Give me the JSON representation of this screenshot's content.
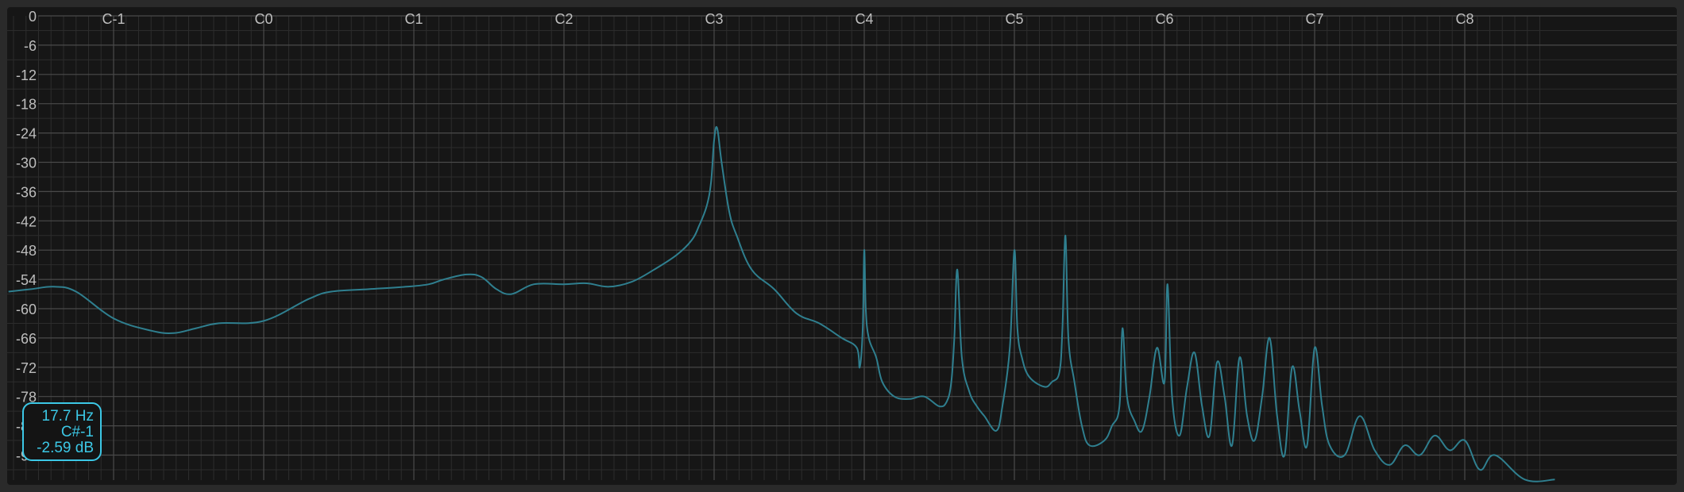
{
  "colors": {
    "background": "#161616",
    "frame": "#2a2a2a",
    "grid_major": "#4a4a4a",
    "grid_minor": "#2c2c2c",
    "label": "#bdbdbd",
    "trace": "#2f7f8f",
    "accent": "#3cc8e6"
  },
  "readout": {
    "frequency": "17.7 Hz",
    "note": "C#-1",
    "level": "-2.59 dB"
  },
  "chart_data": {
    "type": "line",
    "title": "",
    "xlabel": "",
    "ylabel": "",
    "x_scale": "log2",
    "x_unit": "semitones",
    "xlim": [
      -0.55,
      8.6
    ],
    "ylim": [
      -95,
      0
    ],
    "grid": true,
    "x_ticks": [
      {
        "label": "C-1",
        "value": -1
      },
      {
        "label": "C0",
        "value": 0
      },
      {
        "label": "C1",
        "value": 1
      },
      {
        "label": "C2",
        "value": 2
      },
      {
        "label": "C3",
        "value": 3
      },
      {
        "label": "C4",
        "value": 4
      },
      {
        "label": "C5",
        "value": 5
      },
      {
        "label": "C6",
        "value": 6
      },
      {
        "label": "C7",
        "value": 7
      },
      {
        "label": "C8",
        "value": 8
      }
    ],
    "y_ticks": [
      "0",
      "-6",
      "-12",
      "-18",
      "-24",
      "-30",
      "-36",
      "-42",
      "-48",
      "-54",
      "-60",
      "-66",
      "-72",
      "-78",
      "-84",
      "-90"
    ],
    "series": [
      {
        "x": [
          -1.7,
          -1.55,
          -1.4,
          -1.25,
          -1.0,
          -0.75,
          -0.6,
          -0.45,
          -0.3,
          0.0,
          0.3,
          0.45,
          0.7,
          0.95,
          1.1,
          1.2,
          1.35,
          1.45,
          1.55,
          1.65,
          1.8,
          2.0,
          2.15,
          2.3,
          2.45,
          2.6,
          2.75,
          2.85,
          2.9,
          2.95,
          2.98,
          3.0,
          3.02,
          3.05,
          3.1,
          3.15,
          3.25,
          3.4,
          3.55,
          3.7,
          3.85,
          3.95,
          3.97,
          3.99,
          4.0,
          4.01,
          4.03,
          4.08,
          4.12,
          4.2,
          4.3,
          4.4,
          4.5,
          4.55,
          4.58,
          4.6,
          4.62,
          4.65,
          4.7,
          4.75,
          4.8,
          4.88,
          4.92,
          4.97,
          5.0,
          5.02,
          5.05,
          5.1,
          5.2,
          5.25,
          5.3,
          5.32,
          5.34,
          5.36,
          5.4,
          5.45,
          5.5,
          5.6,
          5.65,
          5.7,
          5.72,
          5.75,
          5.8,
          5.85,
          5.9,
          5.95,
          6.0,
          6.02,
          6.05,
          6.1,
          6.15,
          6.2,
          6.25,
          6.3,
          6.35,
          6.4,
          6.45,
          6.5,
          6.55,
          6.6,
          6.65,
          6.7,
          6.75,
          6.8,
          6.85,
          6.9,
          6.95,
          7.0,
          7.05,
          7.1,
          7.2,
          7.3,
          7.4,
          7.5,
          7.6,
          7.7,
          7.8,
          7.9,
          8.0,
          8.1,
          8.2,
          8.4,
          8.6
        ],
        "y": [
          -56.5,
          -56.0,
          -55.5,
          -56.5,
          -62.0,
          -64.5,
          -65.0,
          -64.0,
          -63.0,
          -62.5,
          -58.0,
          -56.5,
          -56.0,
          -55.5,
          -55.0,
          -54.0,
          -53.0,
          -53.5,
          -56.0,
          -57.0,
          -55.0,
          -55.0,
          -54.8,
          -55.5,
          -54.5,
          -52.0,
          -49.0,
          -46.0,
          -43.0,
          -39.0,
          -34.0,
          -25.5,
          -23.0,
          -30.0,
          -40.0,
          -45.0,
          -52.0,
          -56.0,
          -61.0,
          -63.0,
          -66.0,
          -68.0,
          -72.0,
          -64.0,
          -48.0,
          -60.0,
          -66.0,
          -70.0,
          -75.0,
          -78.0,
          -78.5,
          -78.0,
          -80.0,
          -79.0,
          -75.0,
          -66.0,
          -52.0,
          -70.0,
          -77.0,
          -80.0,
          -82.0,
          -85.0,
          -80.0,
          -68.0,
          -48.0,
          -64.0,
          -70.0,
          -74.0,
          -76.0,
          -75.0,
          -73.0,
          -64.0,
          -45.0,
          -66.0,
          -75.0,
          -84.0,
          -88.0,
          -87.0,
          -84.0,
          -80.0,
          -64.0,
          -78.0,
          -83.0,
          -85.0,
          -78.0,
          -68.0,
          -75.0,
          -55.0,
          -78.0,
          -86.0,
          -76.0,
          -69.0,
          -80.0,
          -86.0,
          -71.0,
          -78.0,
          -88.0,
          -70.0,
          -82.0,
          -87.0,
          -78.0,
          -66.0,
          -82.0,
          -90.0,
          -72.0,
          -81.0,
          -88.0,
          -68.0,
          -80.0,
          -88.0,
          -90.0,
          -82.0,
          -89.0,
          -92.0,
          -88.0,
          -90.0,
          -86.0,
          -89.0,
          -87.0,
          -93.0,
          -90.0,
          -95.0,
          -95.0
        ]
      }
    ]
  }
}
